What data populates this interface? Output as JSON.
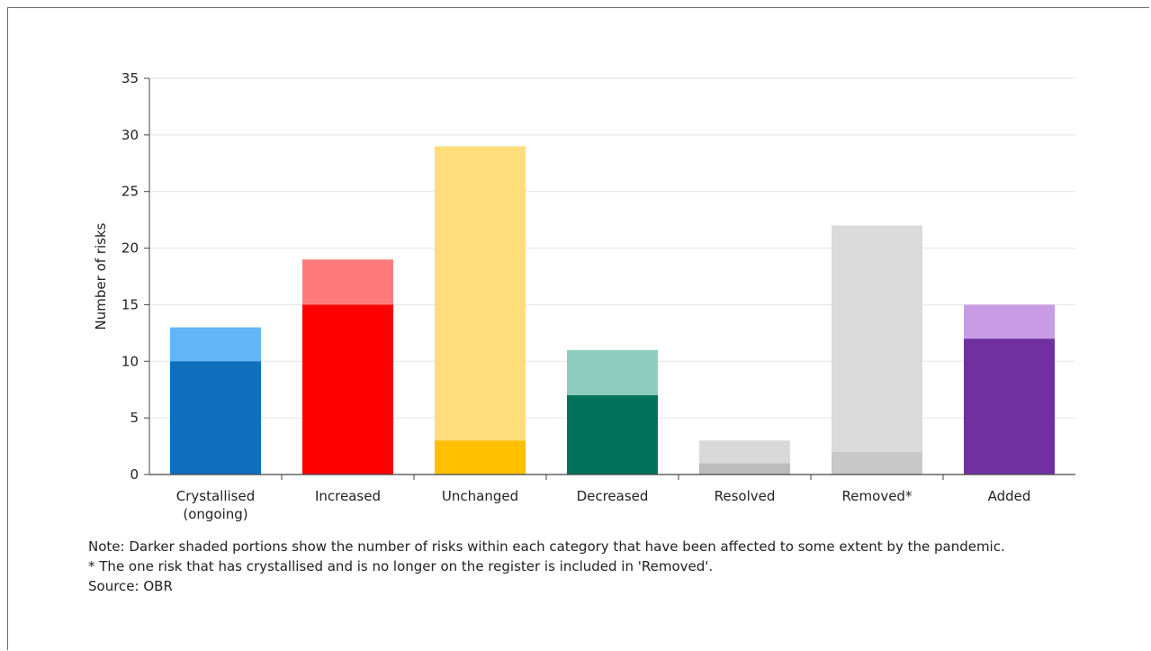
{
  "chart_data": {
    "type": "bar",
    "ylabel": "Number of risks",
    "ylim": [
      0,
      35
    ],
    "yticks": [
      0,
      5,
      10,
      15,
      20,
      25,
      30,
      35
    ],
    "grid": true,
    "categories": [
      [
        "Crystallised",
        "(ongoing)"
      ],
      [
        "Increased"
      ],
      [
        "Unchanged"
      ],
      [
        "Decreased"
      ],
      [
        "Resolved"
      ],
      [
        "Removed*"
      ],
      [
        "Added"
      ]
    ],
    "series": [
      {
        "values": [
          10,
          15,
          3,
          7,
          1,
          2,
          12
        ]
      },
      {
        "values": [
          13,
          19,
          29,
          11,
          3,
          22,
          15
        ]
      }
    ],
    "colors": {
      "dark": [
        "#0e6fbe",
        "#ff0000",
        "#ffc000",
        "#00735a",
        "#bdbdbd",
        "#c8c8c8",
        "#7030a0"
      ],
      "light": [
        "#64b5f6",
        "#ff7b7b",
        "#ffdd7a",
        "#8ecdbe",
        "#d9d9d9",
        "#dadada",
        "#c79be6"
      ]
    }
  },
  "notes": {
    "line1": "Note: Darker shaded portions show the number of risks within each category that have been affected to some extent by the pandemic.",
    "line2": "* The one risk that has crystallised and is no longer on the register is included in 'Removed'.",
    "line3": "Source: OBR"
  }
}
